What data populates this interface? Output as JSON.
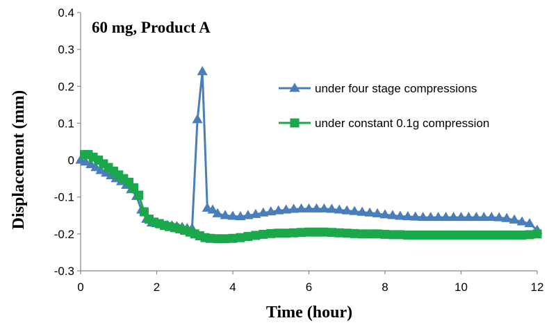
{
  "chart_data": {
    "type": "line",
    "title": "60 mg, Product A",
    "xlabel": "Time (hour)",
    "ylabel": "Displacement (mm)",
    "xlim": [
      0,
      12
    ],
    "ylim": [
      -0.3,
      0.4
    ],
    "x_ticks": [
      "0",
      "2",
      "4",
      "6",
      "8",
      "10",
      "12"
    ],
    "y_ticks": [
      "-0.3",
      "-0.2",
      "-0.1",
      "0",
      "0.1",
      "0.2",
      "0.3",
      "0.4"
    ],
    "grid": false,
    "legend_position": "right",
    "series": [
      {
        "name": "under four stage compressions",
        "color": "#4a7ebb",
        "marker": "triangle",
        "x": [
          0,
          0.13,
          0.27,
          0.4,
          0.53,
          0.67,
          0.8,
          0.93,
          1.07,
          1.2,
          1.33,
          1.47,
          1.6,
          1.73,
          1.87,
          2.0,
          2.13,
          2.27,
          2.4,
          2.53,
          2.67,
          2.8,
          2.93,
          3.07,
          3.2,
          3.33,
          3.47,
          3.6,
          3.8,
          4.0,
          4.2,
          4.4,
          4.6,
          4.8,
          5.0,
          5.2,
          5.4,
          5.6,
          5.8,
          6.0,
          6.2,
          6.4,
          6.6,
          6.8,
          7.0,
          7.2,
          7.4,
          7.6,
          7.8,
          8.0,
          8.2,
          8.4,
          8.6,
          8.8,
          9.0,
          9.2,
          9.4,
          9.6,
          9.8,
          10.0,
          10.2,
          10.4,
          10.6,
          10.8,
          11.0,
          11.2,
          11.4,
          11.6,
          11.8,
          12.0
        ],
        "y": [
          0.0,
          -0.005,
          -0.012,
          -0.02,
          -0.028,
          -0.035,
          -0.042,
          -0.05,
          -0.058,
          -0.068,
          -0.08,
          -0.098,
          -0.135,
          -0.16,
          -0.17,
          -0.172,
          -0.175,
          -0.177,
          -0.178,
          -0.18,
          -0.182,
          -0.185,
          -0.185,
          0.11,
          0.24,
          -0.13,
          -0.135,
          -0.145,
          -0.15,
          -0.152,
          -0.153,
          -0.15,
          -0.147,
          -0.143,
          -0.14,
          -0.137,
          -0.135,
          -0.133,
          -0.132,
          -0.132,
          -0.132,
          -0.132,
          -0.133,
          -0.135,
          -0.137,
          -0.139,
          -0.141,
          -0.143,
          -0.145,
          -0.148,
          -0.15,
          -0.152,
          -0.153,
          -0.154,
          -0.155,
          -0.155,
          -0.155,
          -0.155,
          -0.155,
          -0.155,
          -0.155,
          -0.155,
          -0.155,
          -0.155,
          -0.156,
          -0.158,
          -0.162,
          -0.167,
          -0.172,
          -0.19
        ]
      },
      {
        "name": "under constant 0.1g compression",
        "color": "#1aa84a",
        "marker": "square",
        "x": [
          0.1,
          0.2,
          0.33,
          0.47,
          0.6,
          0.73,
          0.87,
          1.0,
          1.13,
          1.27,
          1.4,
          1.53,
          1.67,
          1.8,
          1.93,
          2.07,
          2.2,
          2.33,
          2.47,
          2.6,
          2.73,
          2.87,
          3.0,
          3.13,
          3.27,
          3.4,
          3.6,
          3.8,
          4.0,
          4.2,
          4.4,
          4.6,
          4.8,
          5.0,
          5.2,
          5.4,
          5.6,
          5.8,
          6.0,
          6.2,
          6.4,
          6.6,
          6.8,
          7.0,
          7.2,
          7.4,
          7.6,
          7.8,
          8.0,
          8.2,
          8.4,
          8.6,
          8.8,
          9.0,
          9.2,
          9.4,
          9.6,
          9.8,
          10.0,
          10.2,
          10.4,
          10.6,
          10.8,
          11.0,
          11.2,
          11.4,
          11.6,
          11.8,
          12.0
        ],
        "y": [
          0.015,
          0.015,
          0.008,
          0.0,
          -0.01,
          -0.02,
          -0.03,
          -0.04,
          -0.05,
          -0.06,
          -0.075,
          -0.095,
          -0.14,
          -0.16,
          -0.168,
          -0.172,
          -0.177,
          -0.18,
          -0.183,
          -0.186,
          -0.19,
          -0.195,
          -0.2,
          -0.205,
          -0.21,
          -0.212,
          -0.213,
          -0.213,
          -0.212,
          -0.21,
          -0.207,
          -0.204,
          -0.201,
          -0.199,
          -0.198,
          -0.198,
          -0.197,
          -0.196,
          -0.195,
          -0.195,
          -0.195,
          -0.196,
          -0.197,
          -0.198,
          -0.199,
          -0.2,
          -0.2,
          -0.2,
          -0.201,
          -0.202,
          -0.202,
          -0.203,
          -0.203,
          -0.203,
          -0.203,
          -0.203,
          -0.203,
          -0.203,
          -0.203,
          -0.203,
          -0.203,
          -0.203,
          -0.203,
          -0.203,
          -0.203,
          -0.203,
          -0.203,
          -0.202,
          -0.2
        ]
      }
    ]
  }
}
